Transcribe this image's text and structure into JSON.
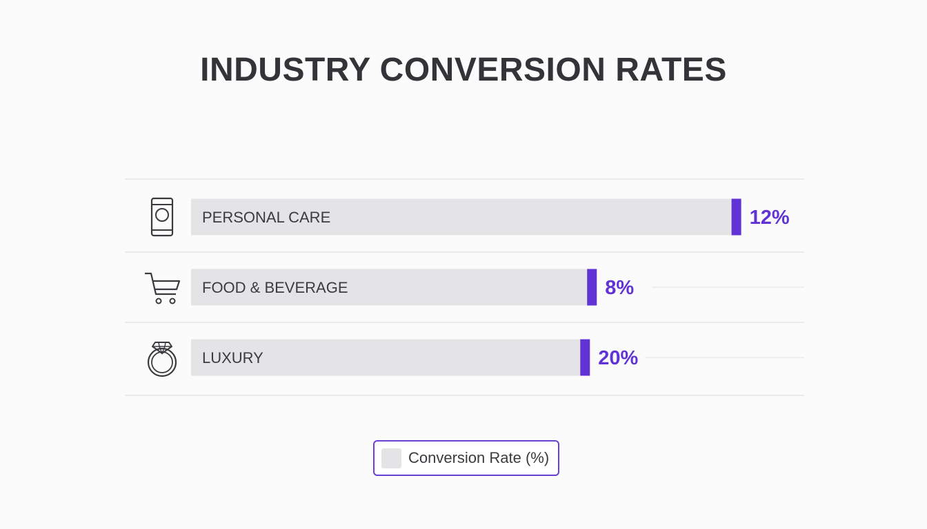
{
  "chart_data": {
    "type": "bar",
    "title": "INDUSTRY CONVERSION RATES",
    "categories": [
      "PERSONAL CARE",
      "FOOD & BEVERAGE",
      "LUXURY"
    ],
    "category_icons": [
      "cup-icon",
      "shopping-cart-icon",
      "diamond-ring-icon"
    ],
    "series": [
      {
        "name": "Conversion Rate (%)",
        "values": [
          12,
          8,
          20
        ],
        "value_labels": [
          "12%",
          "8%",
          "20%"
        ]
      }
    ],
    "bar_fill_fraction": [
      0.8,
      0.59,
      0.58
    ],
    "legend_position": "bottom-center",
    "grid": true
  },
  "colors": {
    "bar": "#e4e4e6",
    "accent": "#6233d4",
    "label": "#3b3b3f",
    "value": "#6233d4",
    "grid": "#e6e6e8",
    "icon": "#3a3a3e"
  }
}
